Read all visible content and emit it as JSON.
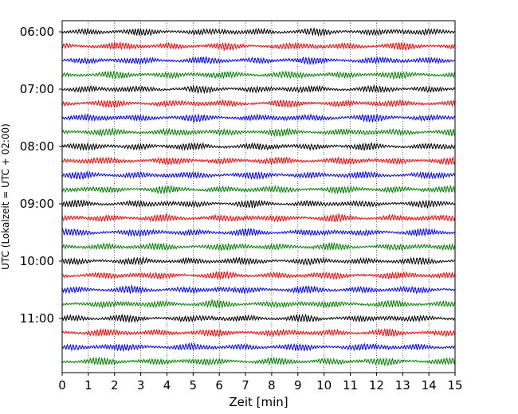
{
  "chart_data": {
    "type": "line",
    "title": "",
    "xlabel": "Zeit  [min]",
    "ylabel": "UTC (Lokalzeit = UTC + 02:00)",
    "xlim": [
      0,
      15
    ],
    "x_ticks": [
      0,
      1,
      2,
      3,
      4,
      5,
      6,
      7,
      8,
      9,
      10,
      11,
      12,
      13,
      14,
      15
    ],
    "x_tick_labels": [
      "0",
      "1",
      "2",
      "3",
      "4",
      "5",
      "6",
      "7",
      "8",
      "9",
      "10",
      "11",
      "12",
      "13",
      "14",
      "15"
    ],
    "y_tick_labels": [
      "06:00",
      "07:00",
      "08:00",
      "09:00",
      "10:00",
      "11:00"
    ],
    "grid": "vertical dotted lines at each minute",
    "trace_start_times": [
      "06:00",
      "06:15",
      "06:30",
      "06:45",
      "07:00",
      "07:15",
      "07:30",
      "07:45",
      "08:00",
      "08:15",
      "08:30",
      "08:45",
      "09:00",
      "09:15",
      "09:30",
      "09:45",
      "10:00",
      "10:15",
      "10:30",
      "10:45",
      "11:00",
      "11:15",
      "11:30",
      "11:45"
    ],
    "trace_minutes_per_row": 15,
    "color_cycle": [
      "#000000",
      "#ff0000",
      "#0000ff",
      "#008000"
    ]
  }
}
